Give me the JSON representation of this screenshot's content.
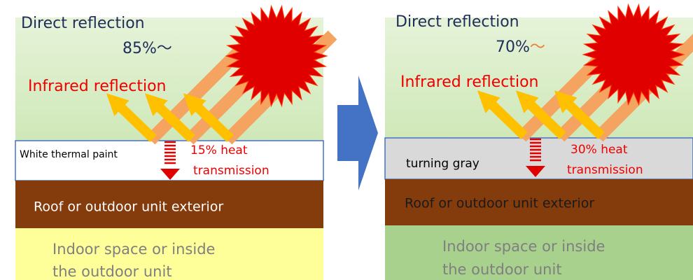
{
  "panels": [
    {
      "direct_label": "Direct reflection",
      "direct_value": "85%～",
      "infrared_label": "Infrared reflection",
      "coating_label": "White thermal paint",
      "heat_line1": "15% heat",
      "heat_line2": "transmission",
      "roof_label": "Roof or outdoor unit exterior",
      "indoor_line1": "Indoor space or inside",
      "indoor_line2": "the outdoor unit"
    },
    {
      "direct_label": "Direct reflection",
      "direct_value": "70%",
      "direct_value_suffix": "～",
      "infrared_label": "Infrared reflection",
      "coating_label": "turning gray",
      "heat_line1": "30% heat",
      "heat_line2": "transmission",
      "roof_label": "Roof or outdoor unit exterior",
      "indoor_line1": "Indoor space or inside",
      "indoor_line2": "the outdoor unit"
    }
  ]
}
